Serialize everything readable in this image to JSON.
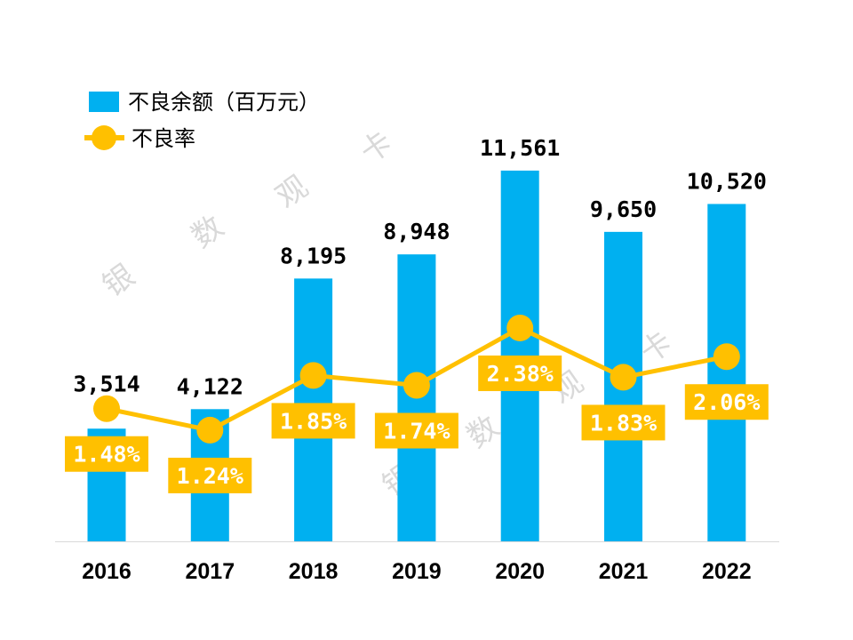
{
  "chart_data": {
    "type": "bar+line",
    "categories": [
      "2016",
      "2017",
      "2018",
      "2019",
      "2020",
      "2021",
      "2022"
    ],
    "series": [
      {
        "name": "不良余额（百万元）",
        "type": "bar",
        "axis": "primary",
        "color": "#00B0F0",
        "values": [
          3514,
          4122,
          8195,
          8948,
          11561,
          9650,
          10520
        ],
        "labels": [
          "3,514",
          "4,122",
          "8,195",
          "8,948",
          "11,561",
          "9,650",
          "10,520"
        ]
      },
      {
        "name": "不良率",
        "type": "line",
        "axis": "secondary",
        "color": "#FFC000",
        "values": [
          1.48,
          1.24,
          1.85,
          1.74,
          2.38,
          1.83,
          2.06
        ],
        "labels": [
          "1.48%",
          "1.24%",
          "1.85%",
          "1.74%",
          "2.38%",
          "1.83%",
          "2.06%"
        ]
      }
    ],
    "ylim": [
      0,
      13000
    ],
    "y2lim": [
      0,
      4.65
    ],
    "y2unit": "%",
    "grid": false,
    "legend": "top-left",
    "watermark": [
      "银",
      "数",
      "观",
      "卡"
    ]
  }
}
